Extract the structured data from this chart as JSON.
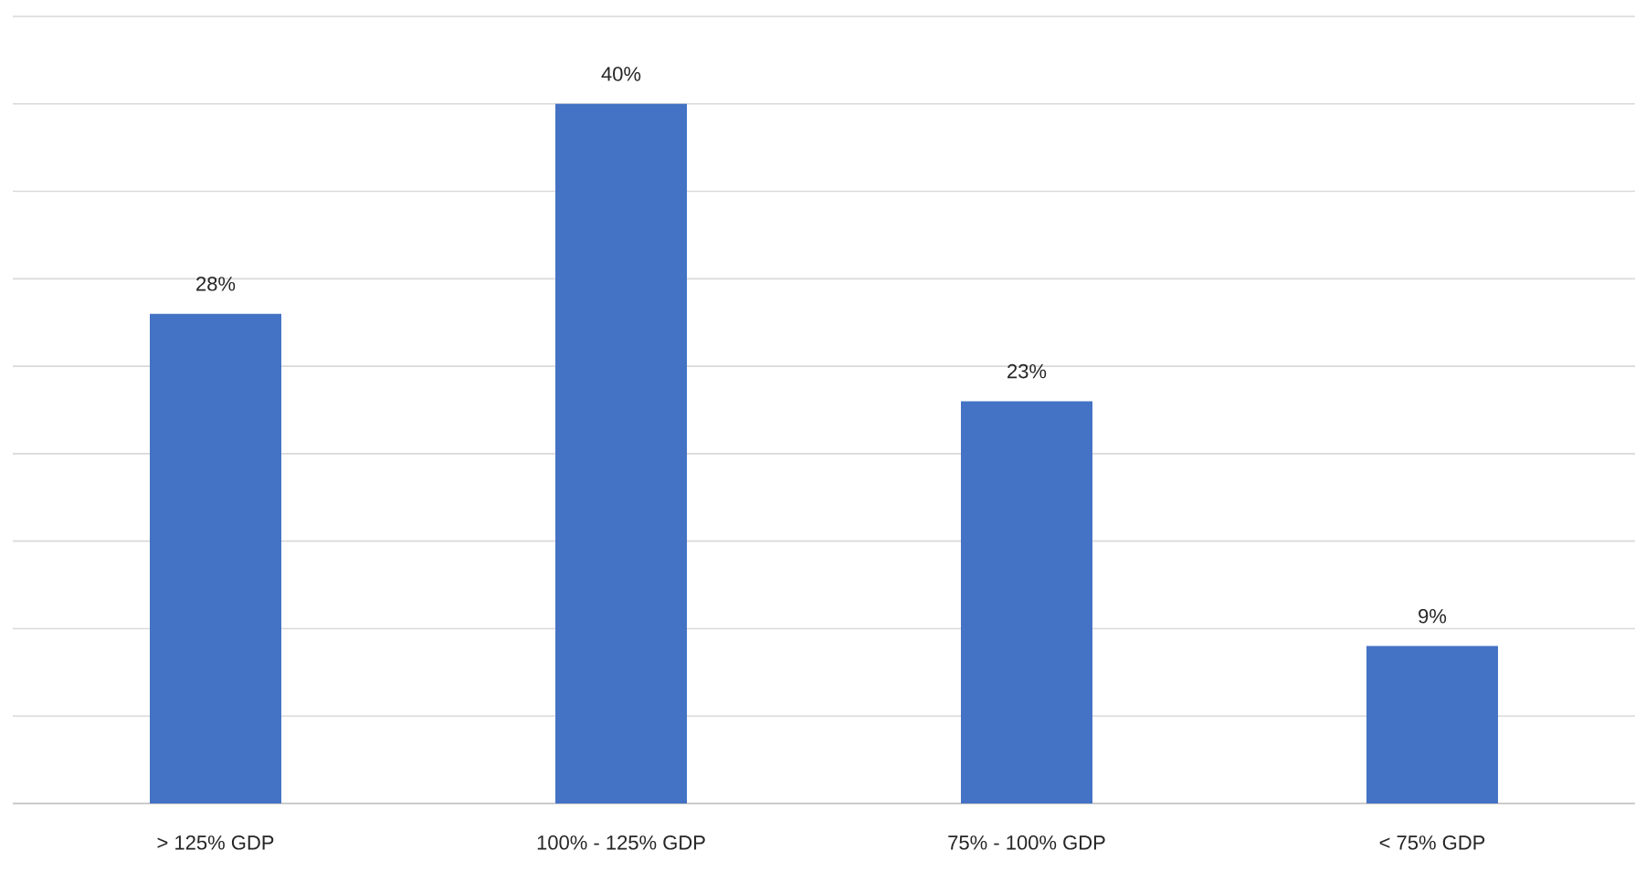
{
  "chart_data": {
    "type": "bar",
    "categories": [
      "> 125% GDP",
      "100%  - 125% GDP",
      "75% - 100% GDP",
      "< 75% GDP"
    ],
    "values": [
      28,
      40,
      23,
      9
    ],
    "value_labels": [
      "28%",
      "40%",
      "23%",
      "9%"
    ],
    "color": "#4472c4",
    "ylim": [
      0,
      45
    ],
    "yticks": [
      {
        "value": 0,
        "label": null
      },
      {
        "value": 5,
        "label": null
      },
      {
        "value": 10,
        "label": null
      },
      {
        "value": 15,
        "label": null
      },
      {
        "value": 20,
        "label": null
      },
      {
        "value": 25,
        "label": null
      },
      {
        "value": 30,
        "label": null
      },
      {
        "value": 35,
        "label": null
      },
      {
        "value": 40,
        "label": null
      },
      {
        "value": 45,
        "label": null
      }
    ],
    "grid": "y",
    "tick_labels": "x"
  }
}
